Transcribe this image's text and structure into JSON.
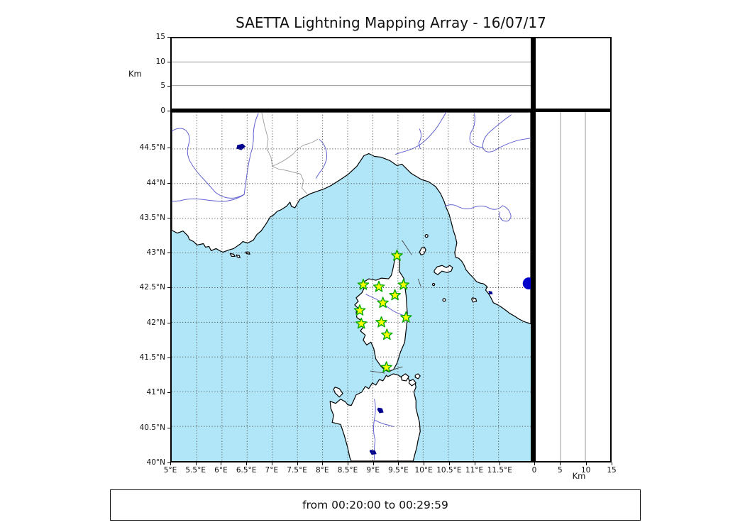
{
  "figure": {
    "title": "SAETTA Lightning Mapping Array - 16/07/17",
    "caption": "from 00:20:00 to 00:29:59"
  },
  "colors": {
    "sea": "#b0e6f7",
    "land": "#ffffff",
    "coastline": "#000000",
    "river": "#6060d0",
    "lake": "#000090",
    "grid": "#555555",
    "admin_border": "#999999",
    "station_fill": "#ffff00",
    "station_stroke": "#00a800",
    "event_dot": "#0000cc",
    "track_line": "#444444"
  },
  "chart_data": {
    "type": "scatter",
    "title": "SAETTA Lightning Mapping Array - 16/07/17",
    "subtitle": "from 00:20:00 to 00:29:59",
    "map_panel": {
      "lon_range": [
        5,
        12.14
      ],
      "lat_range": [
        40,
        45.03
      ],
      "grid": true,
      "lon_ticks": [
        {
          "v": 5,
          "label": "5°E"
        },
        {
          "v": 5.5,
          "label": "5.5°E"
        },
        {
          "v": 6,
          "label": "6°E"
        },
        {
          "v": 6.5,
          "label": "6.5°E"
        },
        {
          "v": 7,
          "label": "7°E"
        },
        {
          "v": 7.5,
          "label": "7.5°E"
        },
        {
          "v": 8,
          "label": "8°E"
        },
        {
          "v": 8.5,
          "label": "8.5°E"
        },
        {
          "v": 9,
          "label": "9°E"
        },
        {
          "v": 9.5,
          "label": "9.5°E"
        },
        {
          "v": 10,
          "label": "10°E"
        },
        {
          "v": 10.5,
          "label": "10.5°E"
        },
        {
          "v": 11,
          "label": "11°E"
        },
        {
          "v": 11.5,
          "label": "11.5°E"
        }
      ],
      "lat_ticks": [
        {
          "v": 44.5,
          "label": "44.5°N"
        },
        {
          "v": 44,
          "label": "44°N"
        },
        {
          "v": 43.5,
          "label": "43.5°N"
        },
        {
          "v": 43,
          "label": "43°N"
        },
        {
          "v": 42.5,
          "label": "42.5°N"
        },
        {
          "v": 42,
          "label": "42°N"
        },
        {
          "v": 41.5,
          "label": "41.5°N"
        },
        {
          "v": 41,
          "label": "41°N"
        },
        {
          "v": 40.5,
          "label": "40.5°N"
        },
        {
          "v": 40,
          "label": "40°N"
        }
      ],
      "series": [
        {
          "name": "lma-stations",
          "marker": "star",
          "points": [
            {
              "lon": 9.48,
              "lat": 42.96
            },
            {
              "lon": 8.81,
              "lat": 42.54
            },
            {
              "lon": 9.12,
              "lat": 42.51
            },
            {
              "lon": 9.61,
              "lat": 42.54
            },
            {
              "lon": 9.44,
              "lat": 42.39
            },
            {
              "lon": 9.2,
              "lat": 42.28
            },
            {
              "lon": 8.74,
              "lat": 42.17
            },
            {
              "lon": 9.66,
              "lat": 42.07
            },
            {
              "lon": 9.17,
              "lat": 42.0
            },
            {
              "lon": 8.77,
              "lat": 41.98
            },
            {
              "lon": 9.28,
              "lat": 41.82
            },
            {
              "lon": 9.27,
              "lat": 41.35
            }
          ]
        },
        {
          "name": "lightning-source",
          "marker": "circle",
          "points": [
            {
              "lon": 12.1,
              "lat": 42.56
            }
          ]
        }
      ]
    },
    "altitude_axis": {
      "label": "Km",
      "range": [
        0,
        15
      ],
      "ticks": [
        {
          "v": 0,
          "label": "0"
        },
        {
          "v": 5,
          "label": "5"
        },
        {
          "v": 10,
          "label": "10"
        },
        {
          "v": 15,
          "label": "15"
        }
      ],
      "gridlines": [
        5,
        10
      ]
    }
  }
}
